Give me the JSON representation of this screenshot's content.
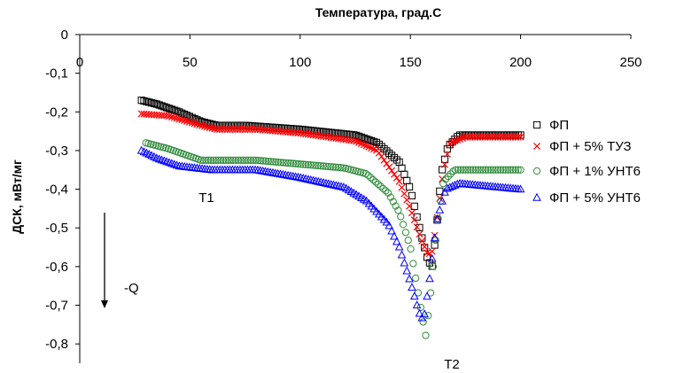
{
  "chart_data": {
    "type": "scatter",
    "title": "",
    "xlabel": "Температура, град.С",
    "ylabel": "ДСК, мВт/мг",
    "xlim": [
      0,
      250
    ],
    "ylim": [
      -0.85,
      0
    ],
    "x_axis_position": "top",
    "x_ticks": [
      "0",
      "50",
      "100",
      "150",
      "200",
      "250"
    ],
    "y_ticks": [
      "0",
      "-0,1",
      "-0,2",
      "-0,3",
      "-0,4",
      "-0,5",
      "-0,6",
      "-0,7",
      "-0,8"
    ],
    "grid": false,
    "legend_position": "right",
    "annotations": [
      "T1",
      "T2",
      "-Q"
    ],
    "series": [
      {
        "name": "ФП",
        "marker": "square",
        "color": "#000000",
        "anchors": [
          [
            28,
            -0.17
          ],
          [
            35,
            -0.18
          ],
          [
            45,
            -0.2
          ],
          [
            55,
            -0.225
          ],
          [
            62,
            -0.235
          ],
          [
            75,
            -0.235
          ],
          [
            100,
            -0.245
          ],
          [
            125,
            -0.26
          ],
          [
            135,
            -0.28
          ],
          [
            145,
            -0.33
          ],
          [
            150,
            -0.4
          ],
          [
            155,
            -0.52
          ],
          [
            158,
            -0.585
          ],
          [
            160,
            -0.6
          ],
          [
            162,
            -0.49
          ],
          [
            164,
            -0.36
          ],
          [
            167,
            -0.29
          ],
          [
            172,
            -0.26
          ],
          [
            200,
            -0.26
          ]
        ]
      },
      {
        "name": "ФП + 5% ТУЗ",
        "marker": "x",
        "color": "#ff0000",
        "anchors": [
          [
            28,
            -0.205
          ],
          [
            40,
            -0.21
          ],
          [
            55,
            -0.235
          ],
          [
            62,
            -0.245
          ],
          [
            80,
            -0.245
          ],
          [
            100,
            -0.255
          ],
          [
            125,
            -0.275
          ],
          [
            135,
            -0.3
          ],
          [
            145,
            -0.38
          ],
          [
            150,
            -0.45
          ],
          [
            155,
            -0.53
          ],
          [
            158,
            -0.57
          ],
          [
            160,
            -0.56
          ],
          [
            162,
            -0.48
          ],
          [
            165,
            -0.35
          ],
          [
            168,
            -0.28
          ],
          [
            175,
            -0.265
          ],
          [
            200,
            -0.265
          ]
        ]
      },
      {
        "name": "ФП + 1% УНТ6",
        "marker": "circle",
        "color": "#2e8b3a",
        "anchors": [
          [
            30,
            -0.28
          ],
          [
            40,
            -0.295
          ],
          [
            55,
            -0.325
          ],
          [
            62,
            -0.325
          ],
          [
            80,
            -0.325
          ],
          [
            100,
            -0.335
          ],
          [
            120,
            -0.345
          ],
          [
            130,
            -0.36
          ],
          [
            140,
            -0.41
          ],
          [
            145,
            -0.46
          ],
          [
            150,
            -0.55
          ],
          [
            153,
            -0.65
          ],
          [
            156,
            -0.75
          ],
          [
            157,
            -0.78
          ],
          [
            159,
            -0.68
          ],
          [
            162,
            -0.5
          ],
          [
            165,
            -0.38
          ],
          [
            170,
            -0.35
          ],
          [
            200,
            -0.35
          ]
        ]
      },
      {
        "name": "ФП + 5% УНТ6",
        "marker": "triangle",
        "color": "#0000ff",
        "anchors": [
          [
            28,
            -0.3
          ],
          [
            35,
            -0.32
          ],
          [
            45,
            -0.34
          ],
          [
            60,
            -0.35
          ],
          [
            80,
            -0.35
          ],
          [
            100,
            -0.37
          ],
          [
            120,
            -0.395
          ],
          [
            130,
            -0.43
          ],
          [
            140,
            -0.49
          ],
          [
            145,
            -0.55
          ],
          [
            150,
            -0.64
          ],
          [
            154,
            -0.72
          ],
          [
            156,
            -0.74
          ],
          [
            159,
            -0.62
          ],
          [
            162,
            -0.48
          ],
          [
            166,
            -0.4
          ],
          [
            172,
            -0.385
          ],
          [
            200,
            -0.4
          ]
        ]
      }
    ]
  }
}
